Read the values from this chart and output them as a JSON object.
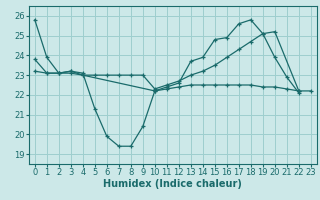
{
  "xlabel": "Humidex (Indice chaleur)",
  "xlim": [
    -0.5,
    23.5
  ],
  "ylim": [
    18.5,
    26.5
  ],
  "yticks": [
    19,
    20,
    21,
    22,
    23,
    24,
    25,
    26
  ],
  "xticks": [
    0,
    1,
    2,
    3,
    4,
    5,
    6,
    7,
    8,
    9,
    10,
    11,
    12,
    13,
    14,
    15,
    16,
    17,
    18,
    19,
    20,
    21,
    22,
    23
  ],
  "bg_color": "#cce8e8",
  "grid_color": "#9ecece",
  "line_color": "#1a6b6b",
  "line1_x": [
    0,
    1,
    2,
    3,
    4,
    5,
    6,
    7,
    8,
    9,
    10,
    11,
    12,
    13,
    14,
    15,
    16,
    17,
    18,
    19,
    20,
    21,
    22
  ],
  "line1_y": [
    25.8,
    23.9,
    23.1,
    23.2,
    23.1,
    21.3,
    19.9,
    19.4,
    19.4,
    20.4,
    22.2,
    22.4,
    22.6,
    23.7,
    23.9,
    24.8,
    24.9,
    25.6,
    25.8,
    25.1,
    23.9,
    22.9,
    22.1
  ],
  "line2_x": [
    0,
    1,
    2,
    3,
    4,
    5,
    6,
    7,
    8,
    9,
    10,
    11,
    12,
    13,
    14,
    15,
    16,
    17,
    18,
    19,
    20,
    22
  ],
  "line2_y": [
    23.8,
    23.1,
    23.1,
    23.2,
    23.0,
    23.0,
    23.0,
    23.0,
    23.0,
    23.0,
    22.3,
    22.5,
    22.7,
    23.0,
    23.2,
    23.5,
    23.9,
    24.3,
    24.7,
    25.1,
    25.2,
    22.2
  ],
  "line3_x": [
    0,
    1,
    2,
    3,
    4,
    10,
    11,
    12,
    13,
    14,
    15,
    16,
    17,
    18,
    19,
    20,
    21,
    22,
    23
  ],
  "line3_y": [
    23.2,
    23.1,
    23.1,
    23.1,
    23.0,
    22.2,
    22.3,
    22.4,
    22.5,
    22.5,
    22.5,
    22.5,
    22.5,
    22.5,
    22.4,
    22.4,
    22.3,
    22.2,
    22.2
  ],
  "tick_fontsize": 6,
  "label_fontsize": 7
}
